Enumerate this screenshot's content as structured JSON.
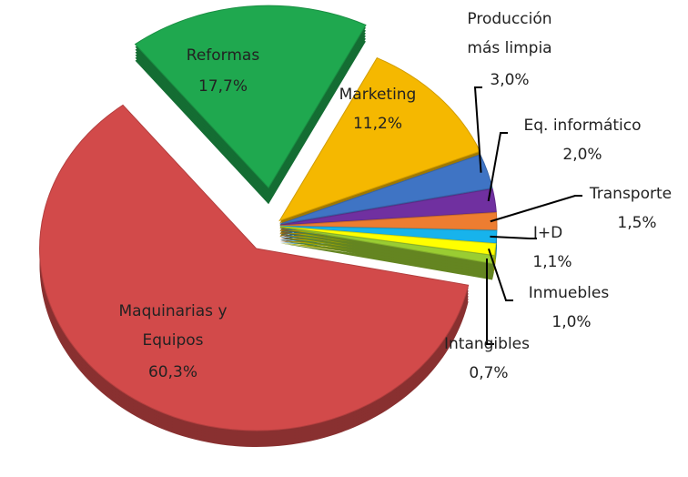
{
  "chart_data": {
    "type": "pie",
    "categories": [
      "Reformas",
      "Marketing",
      "Producción más limpia",
      "Eq. informático",
      "Transporte",
      "I+D",
      "Inmuebles",
      "Intangibles",
      "Maquinarias y Equipos"
    ],
    "values": [
      17.7,
      11.2,
      3.0,
      2.0,
      1.5,
      1.1,
      1.0,
      0.7,
      60.3
    ],
    "value_labels": [
      "17,7%",
      "11,2%",
      "3,0%",
      "2,0%",
      "1,5%",
      "1,1%",
      "1,0%",
      "0,7%",
      "60,3%"
    ],
    "colors": [
      "#1fa84f",
      "#f5b800",
      "#3f74c4",
      "#7030a0",
      "#ed7d31",
      "#17b3ec",
      "#ffff00",
      "#9acd32",
      "#d24a4a"
    ]
  }
}
